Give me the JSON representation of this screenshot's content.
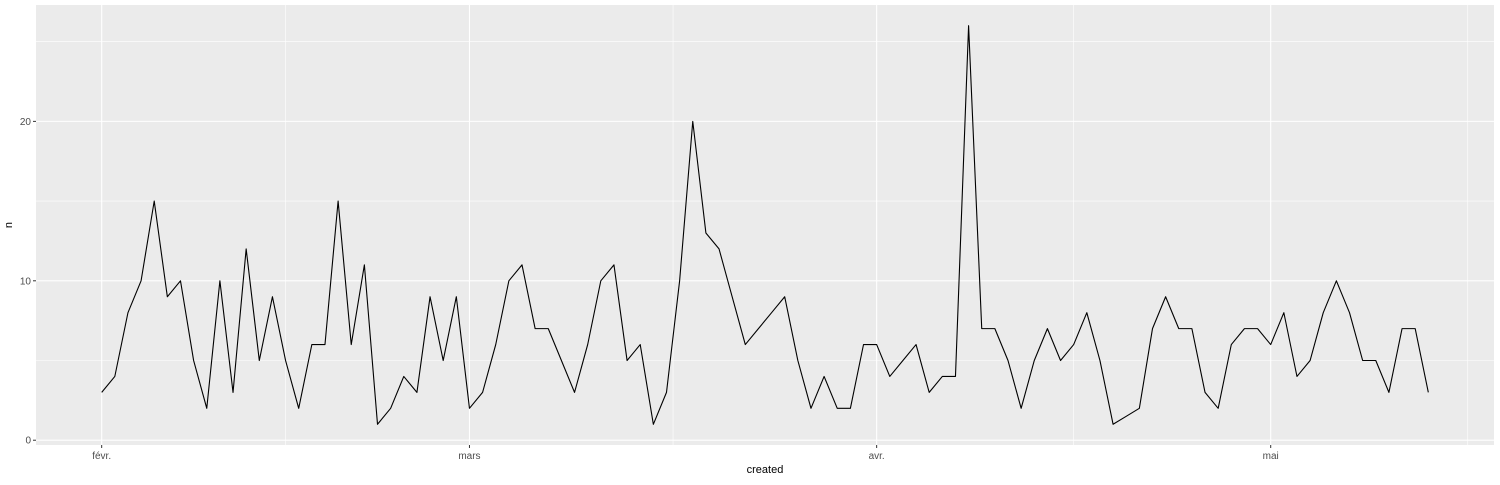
{
  "chart_data": {
    "type": "line",
    "xlabel": "created",
    "ylabel": "n",
    "x_tick_labels": [
      "févr.",
      "mars",
      "avr.",
      "mai"
    ],
    "x_tick_dates": [
      "2021-02-01",
      "2021-03-01",
      "2021-04-01",
      "2021-05-01"
    ],
    "y_ticks": [
      0,
      10,
      20
    ],
    "y_tick_labels": [
      "0",
      "10",
      "20"
    ],
    "xlim": [
      "2021-01-27",
      "2021-05-18"
    ],
    "ylim": [
      -0.3,
      27.3
    ],
    "grid": true,
    "legend": "none",
    "colors": {
      "panel": "#ebebeb",
      "grid": "#ffffff",
      "line": "#000000",
      "tick": "#333333"
    },
    "series": [
      {
        "start": "2021-02-01",
        "values": [
          3,
          4,
          8,
          10,
          15,
          9,
          10,
          5,
          2,
          10,
          3,
          12,
          5,
          9,
          5,
          2,
          6,
          6,
          15,
          6,
          11,
          1,
          2,
          4,
          3,
          9,
          5,
          9,
          2,
          3,
          6,
          10,
          11,
          7,
          7,
          5,
          3,
          6,
          10,
          11,
          5,
          6,
          1,
          3,
          10,
          20,
          13,
          12,
          9,
          6,
          7,
          8,
          9,
          5,
          2,
          4,
          2,
          2,
          6,
          6,
          4,
          5,
          6,
          3,
          4,
          4,
          26,
          7,
          7,
          5,
          2,
          5,
          7,
          5,
          6,
          8,
          5,
          1,
          1.5,
          2,
          7,
          9,
          7,
          7,
          3,
          2,
          6,
          7,
          7,
          6,
          8,
          4,
          5,
          8,
          10,
          8,
          5,
          5,
          3,
          7,
          7,
          3
        ]
      }
    ]
  }
}
